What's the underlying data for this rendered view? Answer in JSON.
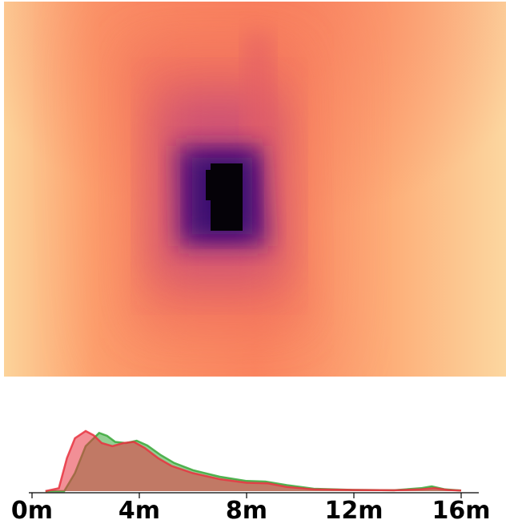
{
  "image": {
    "kind": "depth map",
    "colormap": "magma",
    "icon": "depth-heatmap"
  },
  "colors": {
    "near": "#000004",
    "deep": "#3b0f70",
    "mid": "#b63679",
    "warm": "#fb8761",
    "far": "#fcdba0",
    "series_a": "#e8333f",
    "series_b": "#3aa83a",
    "overlap": "#a0522d"
  },
  "chart_data": {
    "type": "area",
    "title": "",
    "xlabel": "",
    "ylabel": "",
    "xlim": [
      -0.5,
      16.5
    ],
    "ylim": [
      0,
      1
    ],
    "xticks": [
      0,
      4,
      8,
      12,
      16
    ],
    "xtick_labels": [
      "0m",
      "4m",
      "8m",
      "12m",
      "16m"
    ],
    "grid": false,
    "legend": "none",
    "series": [
      {
        "color": "#e8333f",
        "x": [
          0.5,
          1.0,
          1.3,
          1.6,
          2.0,
          2.3,
          2.6,
          3.0,
          3.4,
          3.8,
          4.2,
          4.7,
          5.2,
          6.0,
          7.0,
          8.0,
          8.8,
          9.5,
          10.5,
          12.0,
          13.5,
          14.5,
          15.0,
          15.5,
          16.0
        ],
        "y": [
          0.0,
          0.05,
          0.55,
          0.88,
          1.0,
          0.93,
          0.8,
          0.75,
          0.8,
          0.82,
          0.72,
          0.55,
          0.42,
          0.3,
          0.2,
          0.14,
          0.13,
          0.07,
          0.03,
          0.02,
          0.015,
          0.03,
          0.05,
          0.02,
          0.01
        ]
      },
      {
        "color": "#3aa83a",
        "x": [
          0.5,
          1.2,
          1.6,
          2.0,
          2.5,
          2.8,
          3.1,
          3.5,
          3.9,
          4.3,
          4.8,
          5.3,
          6.0,
          7.0,
          8.0,
          8.7,
          9.5,
          10.5,
          12.0,
          13.5,
          14.5,
          14.9,
          15.4,
          16.0
        ],
        "y": [
          0.0,
          0.0,
          0.3,
          0.75,
          0.97,
          0.92,
          0.82,
          0.8,
          0.84,
          0.76,
          0.6,
          0.47,
          0.35,
          0.24,
          0.17,
          0.16,
          0.1,
          0.04,
          0.02,
          0.015,
          0.05,
          0.08,
          0.03,
          0.01
        ]
      }
    ]
  }
}
